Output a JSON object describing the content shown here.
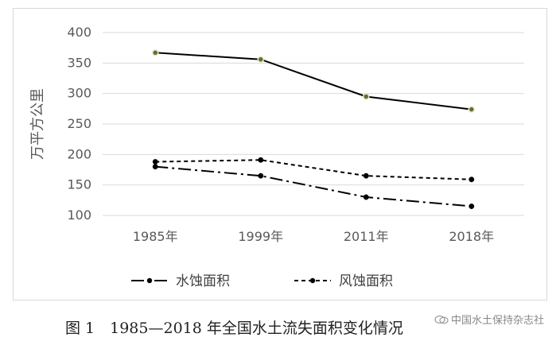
{
  "chart_data": {
    "type": "line",
    "categories": [
      "1985年",
      "1999年",
      "2011年",
      "2018年"
    ],
    "ylabel": "万平方公里",
    "ylim": [
      100,
      400
    ],
    "yticks": [
      100,
      150,
      200,
      250,
      300,
      350,
      400
    ],
    "grid": true,
    "legend_position": "bottom",
    "series": [
      {
        "name": "",
        "values": [
          367,
          356,
          295,
          274
        ],
        "style": "solid",
        "color": "#000000"
      },
      {
        "name": "水蚀面积",
        "values": [
          180,
          165,
          130,
          115
        ],
        "style": "dash-dot",
        "color": "#000000"
      },
      {
        "name": "风蚀面积",
        "values": [
          188,
          191,
          165,
          159
        ],
        "style": "dotted",
        "color": "#000000"
      }
    ]
  },
  "caption": "图 1　1985—2018 年全国水土流失面积变化情况",
  "watermark": "中国水土保持杂志社"
}
